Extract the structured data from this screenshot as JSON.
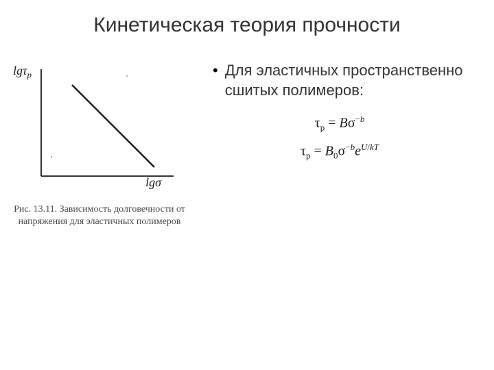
{
  "title": "Кинетическая теория прочности",
  "bullet_text": "Для эластичных пространственно сшитых полимеров:",
  "chart": {
    "type": "line",
    "y_axis_label_main": "lg",
    "y_axis_label_symbol": "τ",
    "y_axis_label_sub": "p",
    "x_axis_label_main": "lg",
    "x_axis_label_symbol": "σ",
    "line_points": [
      [
        90,
        35
      ],
      [
        210,
        155
      ]
    ],
    "axis_color": "#1a1a1a",
    "line_color": "#1a1a1a",
    "line_width": 2.5,
    "axis_width": 1.8,
    "axis_x_range": [
      45,
      238
    ],
    "axis_y_range": [
      168,
      12
    ],
    "background_color": "#ffffff"
  },
  "caption": "Рис. 13.11. Зависимость долго­вечности от напряжения для эластичных полимеров",
  "equations": {
    "eq1_html": "τ<sub>p</sub> = <span class='it'>B</span>σ<sup>−<span class='it'>b</span></sup>",
    "eq2_html": "τ<sub>p</sub> = <span class='it'>B</span><sub>0</sub>σ<sup>−<span class='it'>b</span></sup><span class='it'>e</span><sup><span class='it'>U</span>/<span class='it'>kT</span></sup>"
  }
}
